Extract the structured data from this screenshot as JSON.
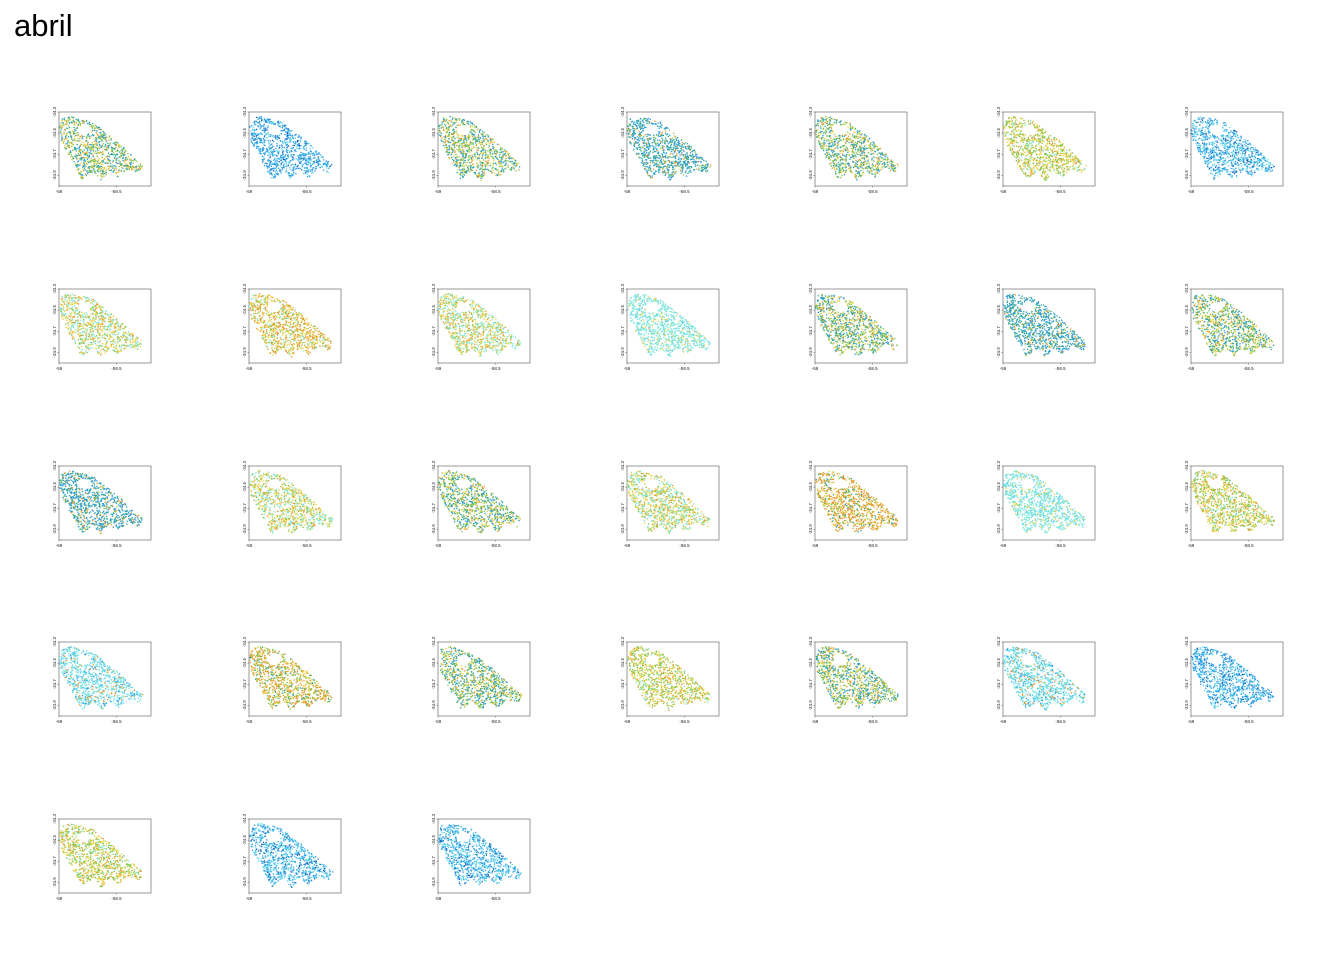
{
  "title": "abril",
  "axes": {
    "x_ticks": [
      "-59",
      "-58.5"
    ],
    "y_ticks": [
      "-34.3",
      "-34.5",
      "-34.7",
      "-34.9"
    ]
  },
  "chart_data": {
    "type": "scatter",
    "title": "abril",
    "panel_count": 31,
    "columns": 7,
    "xlim": [
      -59.0,
      -58.2
    ],
    "ylim": [
      -35.0,
      -34.3
    ],
    "x_ticks": [
      -59,
      -58.5
    ],
    "y_ticks": [
      -34.3,
      -34.5,
      -34.7,
      -34.9
    ],
    "grid": false,
    "legend": "none",
    "palette": {
      "dark_blue": "#1f5fb3",
      "blue": "#2f9ee8",
      "cyan": "#5ed6ee",
      "aqua": "#7ee8d8",
      "teal": "#2aa3a8",
      "green": "#8bc64a",
      "yellow": "#e8d040",
      "orange": "#e8982a",
      "red": "#e04a30"
    },
    "panels": [
      {
        "tone": "mixed-green-teal"
      },
      {
        "tone": "blue"
      },
      {
        "tone": "mixed-green-teal"
      },
      {
        "tone": "teal-blue"
      },
      {
        "tone": "mixed-green-teal"
      },
      {
        "tone": "yellow-green"
      },
      {
        "tone": "light-blue"
      },
      {
        "tone": "yellow-aqua"
      },
      {
        "tone": "yellow-orange"
      },
      {
        "tone": "yellow-aqua"
      },
      {
        "tone": "aqua"
      },
      {
        "tone": "mixed-green-teal"
      },
      {
        "tone": "teal-blue"
      },
      {
        "tone": "mixed-green-teal"
      },
      {
        "tone": "teal-blue"
      },
      {
        "tone": "yellow-aqua"
      },
      {
        "tone": "mixed-green-teal"
      },
      {
        "tone": "yellow-aqua"
      },
      {
        "tone": "orange"
      },
      {
        "tone": "aqua"
      },
      {
        "tone": "yellow-green"
      },
      {
        "tone": "light-aqua"
      },
      {
        "tone": "orange-green"
      },
      {
        "tone": "mixed-green-teal"
      },
      {
        "tone": "yellow-green"
      },
      {
        "tone": "mixed-green-teal"
      },
      {
        "tone": "light-aqua"
      },
      {
        "tone": "blue"
      },
      {
        "tone": "yellow-green"
      },
      {
        "tone": "light-blue"
      },
      {
        "tone": "light-blue"
      }
    ]
  }
}
